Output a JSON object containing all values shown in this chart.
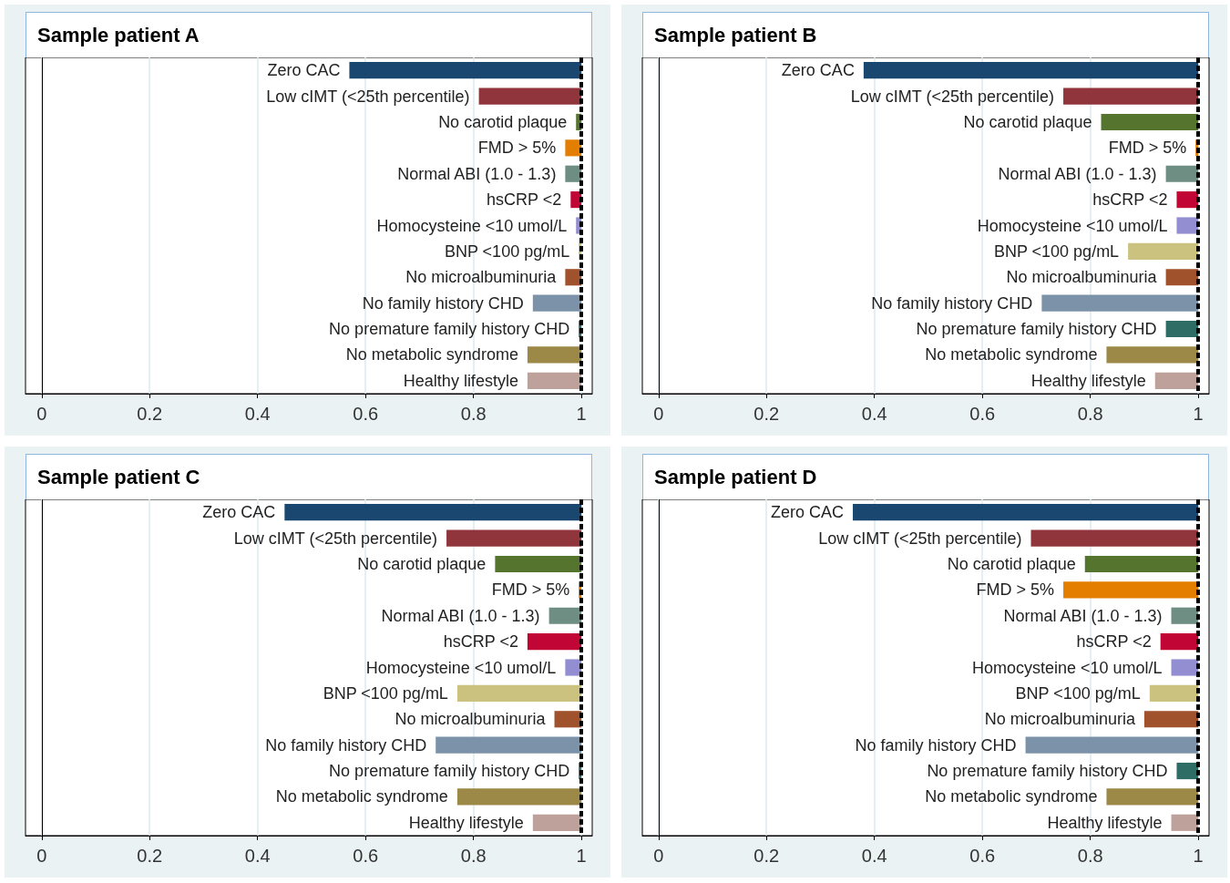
{
  "chart_data": [
    {
      "type": "bar",
      "orientation": "horizontal",
      "title": "Sample patient A",
      "categories": [
        "Zero CAC",
        "Low cIMT (<25th percentile)",
        "No carotid plaque",
        "FMD > 5%",
        "Normal ABI (1.0 - 1.3)",
        "hsCRP <2",
        "Homocysteine <10 umol/L",
        "BNP <100 pg/mL",
        "No microalbuminuria",
        "No family history CHD",
        "No premature family history CHD",
        "No metabolic syndrome",
        "Healthy lifestyle"
      ],
      "base": [
        0.57,
        0.81,
        0.99,
        0.97,
        0.97,
        0.98,
        0.99,
        0.995,
        0.97,
        0.91,
        0.995,
        0.9,
        0.9
      ],
      "values": [
        0.43,
        0.19,
        0.01,
        0.03,
        0.03,
        0.02,
        0.01,
        0.005,
        0.03,
        0.09,
        0.005,
        0.1,
        0.1
      ],
      "colors": [
        "#1a476f",
        "#90353b",
        "#55752f",
        "#e37e00",
        "#6e8e84",
        "#c10534",
        "#938dd2",
        "#cac27e",
        "#a0522d",
        "#7b92a8",
        "#2d6d66",
        "#9c8847",
        "#bfa19c"
      ],
      "xlim": [
        -0.03,
        1.02
      ],
      "xticks": [
        0,
        0.2,
        0.4,
        0.6,
        0.8,
        1
      ],
      "grid": "x",
      "tick_labels": "x",
      "ref_lines": [
        {
          "axis": "x",
          "value": 1,
          "color": "#000000",
          "line_style": "dashed"
        }
      ]
    },
    {
      "type": "bar",
      "orientation": "horizontal",
      "title": "Sample patient B",
      "categories": [
        "Zero CAC",
        "Low cIMT (<25th percentile)",
        "No carotid plaque",
        "FMD > 5%",
        "Normal ABI (1.0 - 1.3)",
        "hsCRP <2",
        "Homocysteine <10 umol/L",
        "BNP <100 pg/mL",
        "No microalbuminuria",
        "No family history CHD",
        "No premature family history CHD",
        "No metabolic syndrome",
        "Healthy lifestyle"
      ],
      "base": [
        0.38,
        0.75,
        0.82,
        0.995,
        0.94,
        0.96,
        0.96,
        0.87,
        0.94,
        0.71,
        0.94,
        0.83,
        0.92
      ],
      "values": [
        0.62,
        0.25,
        0.18,
        0.005,
        0.06,
        0.04,
        0.04,
        0.13,
        0.06,
        0.29,
        0.06,
        0.17,
        0.08
      ],
      "colors": [
        "#1a476f",
        "#90353b",
        "#55752f",
        "#e37e00",
        "#6e8e84",
        "#c10534",
        "#938dd2",
        "#cac27e",
        "#a0522d",
        "#7b92a8",
        "#2d6d66",
        "#9c8847",
        "#bfa19c"
      ],
      "xlim": [
        -0.03,
        1.02
      ],
      "xticks": [
        0,
        0.2,
        0.4,
        0.6,
        0.8,
        1
      ],
      "grid": "x",
      "tick_labels": "x",
      "ref_lines": [
        {
          "axis": "x",
          "value": 1,
          "color": "#000000",
          "line_style": "dashed"
        }
      ]
    },
    {
      "type": "bar",
      "orientation": "horizontal",
      "title": "Sample patient C",
      "categories": [
        "Zero CAC",
        "Low cIMT (<25th percentile)",
        "No carotid plaque",
        "FMD > 5%",
        "Normal ABI (1.0 - 1.3)",
        "hsCRP <2",
        "Homocysteine <10 umol/L",
        "BNP <100 pg/mL",
        "No microalbuminuria",
        "No family history CHD",
        "No premature family history CHD",
        "No metabolic syndrome",
        "Healthy lifestyle"
      ],
      "base": [
        0.45,
        0.75,
        0.84,
        0.995,
        0.94,
        0.9,
        0.97,
        0.77,
        0.95,
        0.73,
        0.995,
        0.77,
        0.91
      ],
      "values": [
        0.55,
        0.25,
        0.16,
        0.005,
        0.06,
        0.1,
        0.03,
        0.23,
        0.05,
        0.27,
        0.005,
        0.23,
        0.09
      ],
      "colors": [
        "#1a476f",
        "#90353b",
        "#55752f",
        "#e37e00",
        "#6e8e84",
        "#c10534",
        "#938dd2",
        "#cac27e",
        "#a0522d",
        "#7b92a8",
        "#2d6d66",
        "#9c8847",
        "#bfa19c"
      ],
      "xlim": [
        -0.03,
        1.02
      ],
      "xticks": [
        0,
        0.2,
        0.4,
        0.6,
        0.8,
        1
      ],
      "grid": "x",
      "tick_labels": "x",
      "ref_lines": [
        {
          "axis": "x",
          "value": 1,
          "color": "#000000",
          "line_style": "dashed"
        }
      ]
    },
    {
      "type": "bar",
      "orientation": "horizontal",
      "title": "Sample patient D",
      "categories": [
        "Zero CAC",
        "Low cIMT (<25th percentile)",
        "No carotid plaque",
        "FMD > 5%",
        "Normal ABI (1.0 - 1.3)",
        "hsCRP <2",
        "Homocysteine <10 umol/L",
        "BNP <100 pg/mL",
        "No microalbuminuria",
        "No family history CHD",
        "No premature family history CHD",
        "No metabolic syndrome",
        "Healthy lifestyle"
      ],
      "base": [
        0.36,
        0.69,
        0.79,
        0.75,
        0.95,
        0.93,
        0.95,
        0.91,
        0.9,
        0.68,
        0.96,
        0.83,
        0.95
      ],
      "values": [
        0.64,
        0.31,
        0.21,
        0.25,
        0.05,
        0.07,
        0.05,
        0.09,
        0.1,
        0.32,
        0.04,
        0.17,
        0.05
      ],
      "colors": [
        "#1a476f",
        "#90353b",
        "#55752f",
        "#e37e00",
        "#6e8e84",
        "#c10534",
        "#938dd2",
        "#cac27e",
        "#a0522d",
        "#7b92a8",
        "#2d6d66",
        "#9c8847",
        "#bfa19c"
      ],
      "xlim": [
        -0.03,
        1.02
      ],
      "xticks": [
        0,
        0.2,
        0.4,
        0.6,
        0.8,
        1
      ],
      "grid": "x",
      "tick_labels": "x",
      "ref_lines": [
        {
          "axis": "x",
          "value": 1,
          "color": "#000000",
          "line_style": "dashed"
        }
      ]
    }
  ]
}
